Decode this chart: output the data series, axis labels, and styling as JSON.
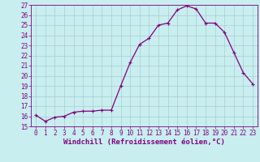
{
  "x": [
    0,
    1,
    2,
    3,
    4,
    5,
    6,
    7,
    8,
    9,
    10,
    11,
    12,
    13,
    14,
    15,
    16,
    17,
    18,
    19,
    20,
    21,
    22,
    23
  ],
  "y": [
    16.1,
    15.5,
    15.9,
    16.0,
    16.4,
    16.5,
    16.5,
    16.6,
    16.6,
    19.0,
    21.3,
    23.1,
    23.7,
    25.0,
    25.2,
    26.5,
    26.9,
    26.6,
    25.2,
    25.2,
    24.3,
    22.3,
    20.3,
    19.2
  ],
  "line_color": "#800080",
  "marker": "+",
  "marker_size": 3,
  "marker_linewidth": 0.8,
  "background_color": "#c8eef0",
  "grid_color": "#aacccc",
  "xlabel": "Windchill (Refroidissement éolien,°C)",
  "ylabel": "",
  "ylim": [
    15,
    27
  ],
  "xlim": [
    -0.5,
    23.5
  ],
  "yticks": [
    15,
    16,
    17,
    18,
    19,
    20,
    21,
    22,
    23,
    24,
    25,
    26,
    27
  ],
  "xticks": [
    0,
    1,
    2,
    3,
    4,
    5,
    6,
    7,
    8,
    9,
    10,
    11,
    12,
    13,
    14,
    15,
    16,
    17,
    18,
    19,
    20,
    21,
    22,
    23
  ],
  "tick_fontsize": 5.5,
  "xlabel_fontsize": 6.5,
  "linewidth": 0.9
}
